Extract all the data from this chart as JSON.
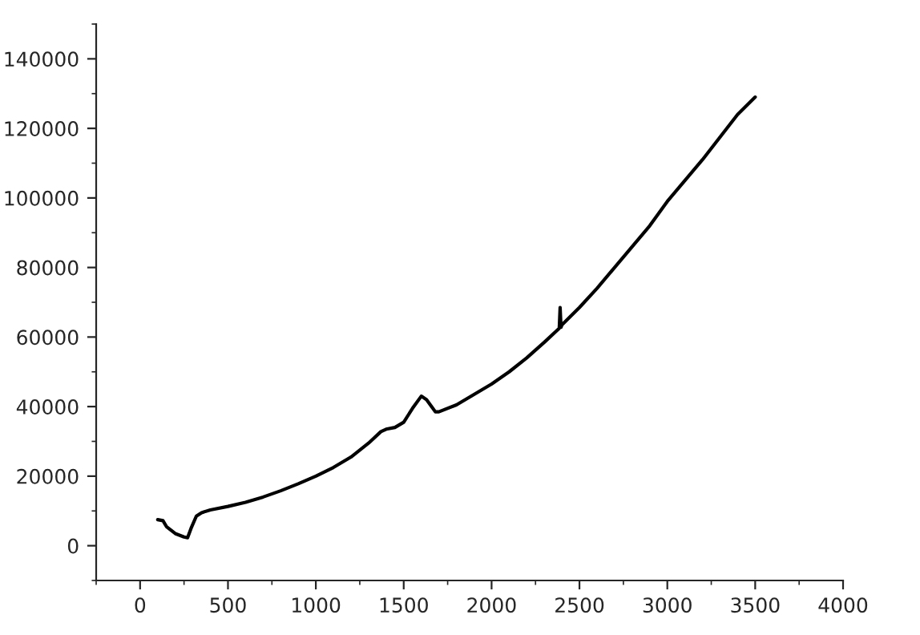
{
  "chart_data": {
    "type": "line",
    "xlim": [
      -250,
      4000
    ],
    "xticks": [
      0,
      500,
      1000,
      1500,
      2000,
      2500,
      3000,
      3500,
      4000
    ],
    "ylim": [
      -10000,
      150000
    ],
    "yticks": [
      0,
      20000,
      40000,
      60000,
      80000,
      100000,
      120000,
      140000
    ],
    "grid": false,
    "legend": false,
    "marker": "none",
    "line_style": "solid",
    "series": [
      {
        "color": "#000000",
        "x": [
          100,
          130,
          150,
          200,
          250,
          270,
          290,
          320,
          350,
          400,
          500,
          600,
          700,
          800,
          900,
          1000,
          1100,
          1200,
          1300,
          1370,
          1400,
          1450,
          1500,
          1550,
          1600,
          1630,
          1680,
          1700,
          1800,
          1900,
          2000,
          2100,
          2200,
          2300,
          2385,
          2390,
          2395,
          2400,
          2500,
          2600,
          2700,
          2800,
          2900,
          3000,
          3100,
          3200,
          3300,
          3400,
          3500
        ],
        "values": [
          7500,
          7200,
          5500,
          3500,
          2500,
          2300,
          5000,
          8500,
          9500,
          10300,
          11300,
          12500,
          14000,
          15800,
          17800,
          20000,
          22500,
          25500,
          29500,
          32800,
          33500,
          34000,
          35500,
          39500,
          43000,
          42000,
          38500,
          38500,
          40500,
          43500,
          46500,
          50000,
          54000,
          58500,
          62500,
          68500,
          62800,
          63500,
          68500,
          74000,
          80000,
          86000,
          92000,
          99000,
          105000,
          111000,
          117500,
          124000,
          129000
        ]
      }
    ]
  }
}
